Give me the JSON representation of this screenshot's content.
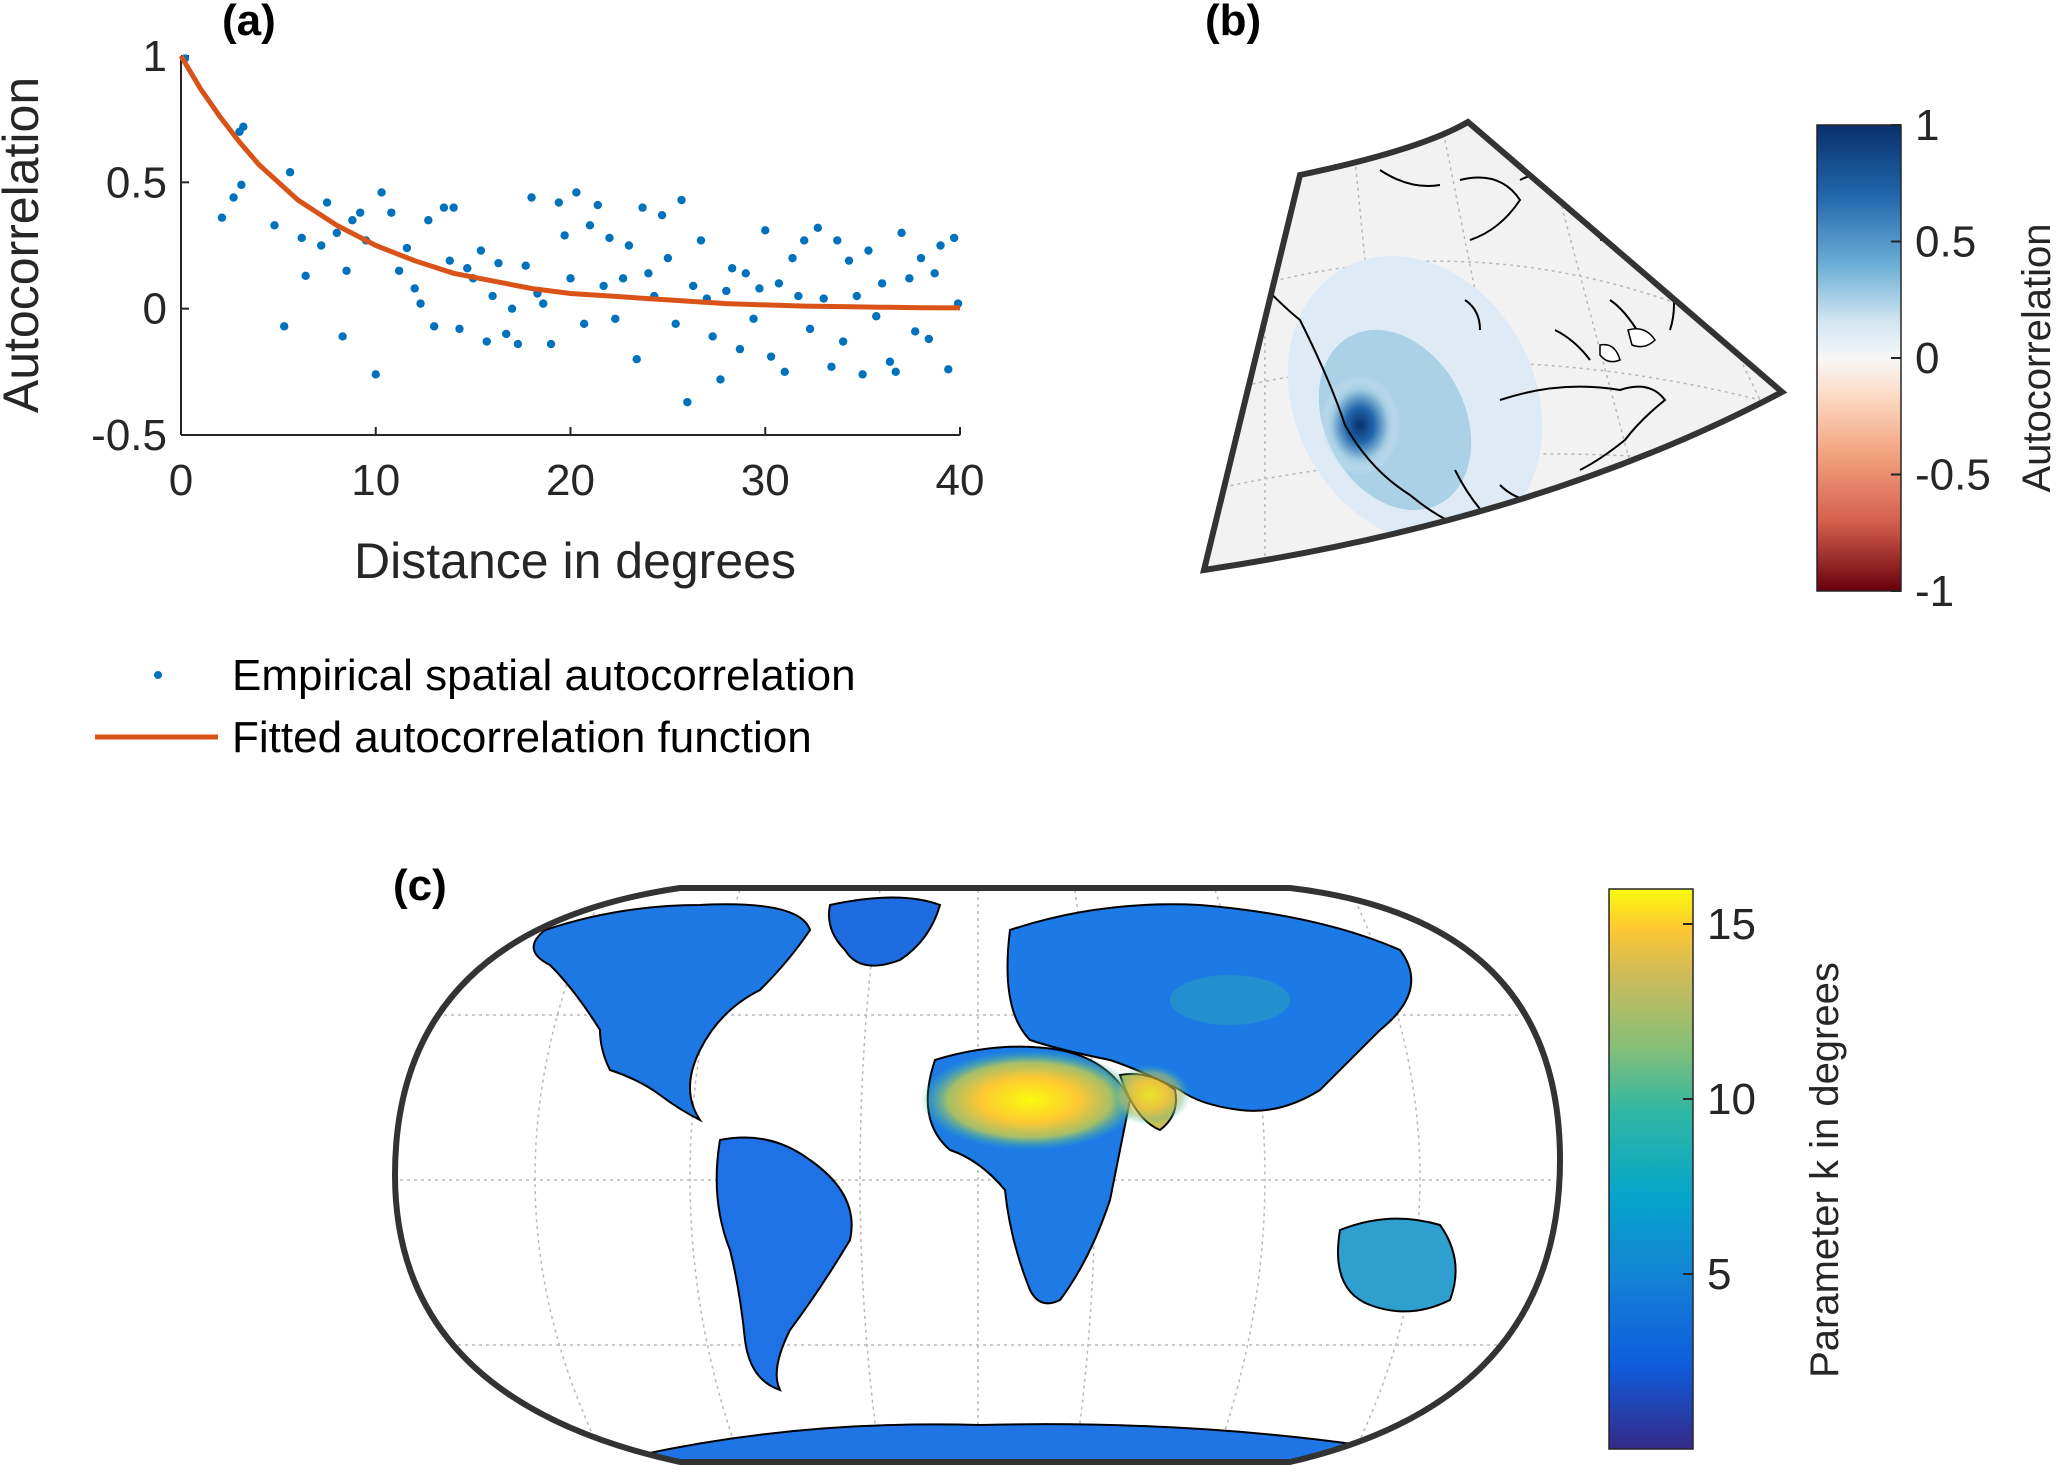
{
  "figure": {
    "panel_a_label": "(a)",
    "panel_b_label": "(b)",
    "panel_c_label": "(c)"
  },
  "chart_data": [
    {
      "type": "scatter",
      "panel": "(a)",
      "xlabel": "Distance in degrees",
      "ylabel": "Autocorrelation",
      "xlim": [
        0,
        40
      ],
      "ylim": [
        -0.5,
        1
      ],
      "xticks": [
        "0",
        "10",
        "20",
        "30",
        "40"
      ],
      "yticks": [
        "-0.5",
        "0",
        "0.5",
        "1"
      ],
      "grid": false,
      "legend_position": "below",
      "colors": {
        "empirical": "#0072BD",
        "fitted": "#D95319"
      },
      "series": [
        {
          "name": "Empirical spatial autocorrelation",
          "style": "dots",
          "points": [
            [
              0.2,
              0.99
            ],
            [
              2.1,
              0.36
            ],
            [
              2.7,
              0.44
            ],
            [
              3.0,
              0.7
            ],
            [
              3.2,
              0.72
            ],
            [
              3.1,
              0.49
            ],
            [
              4.8,
              0.33
            ],
            [
              5.3,
              -0.07
            ],
            [
              5.6,
              0.54
            ],
            [
              6.2,
              0.28
            ],
            [
              6.4,
              0.13
            ],
            [
              7.2,
              0.25
            ],
            [
              7.5,
              0.42
            ],
            [
              8.0,
              0.3
            ],
            [
              8.3,
              -0.11
            ],
            [
              8.5,
              0.15
            ],
            [
              8.8,
              0.35
            ],
            [
              9.2,
              0.38
            ],
            [
              9.5,
              0.27
            ],
            [
              10.0,
              -0.26
            ],
            [
              10.3,
              0.46
            ],
            [
              10.8,
              0.38
            ],
            [
              11.2,
              0.15
            ],
            [
              11.6,
              0.24
            ],
            [
              12.0,
              0.08
            ],
            [
              12.3,
              0.02
            ],
            [
              12.7,
              0.35
            ],
            [
              13.0,
              -0.07
            ],
            [
              13.5,
              0.4
            ],
            [
              13.8,
              0.19
            ],
            [
              14.0,
              0.4
            ],
            [
              14.3,
              -0.08
            ],
            [
              14.7,
              0.16
            ],
            [
              15.0,
              0.12
            ],
            [
              15.4,
              0.23
            ],
            [
              15.7,
              -0.13
            ],
            [
              16.0,
              0.05
            ],
            [
              16.3,
              0.18
            ],
            [
              16.7,
              -0.1
            ],
            [
              17.0,
              0.0
            ],
            [
              17.3,
              -0.14
            ],
            [
              17.7,
              0.17
            ],
            [
              18.0,
              0.44
            ],
            [
              18.3,
              0.06
            ],
            [
              18.6,
              0.02
            ],
            [
              19.0,
              -0.14
            ],
            [
              19.4,
              0.42
            ],
            [
              19.7,
              0.29
            ],
            [
              20.0,
              0.12
            ],
            [
              20.3,
              0.46
            ],
            [
              20.7,
              -0.06
            ],
            [
              21.0,
              0.33
            ],
            [
              21.4,
              0.41
            ],
            [
              21.7,
              0.09
            ],
            [
              22.0,
              0.28
            ],
            [
              22.3,
              -0.04
            ],
            [
              22.7,
              0.12
            ],
            [
              23.0,
              0.25
            ],
            [
              23.4,
              -0.2
            ],
            [
              23.7,
              0.4
            ],
            [
              24.0,
              0.14
            ],
            [
              24.3,
              0.05
            ],
            [
              24.7,
              0.37
            ],
            [
              25.0,
              0.2
            ],
            [
              25.4,
              -0.06
            ],
            [
              25.7,
              0.43
            ],
            [
              26.0,
              -0.37
            ],
            [
              26.3,
              0.09
            ],
            [
              26.7,
              0.27
            ],
            [
              27.0,
              0.04
            ],
            [
              27.3,
              -0.11
            ],
            [
              27.7,
              -0.28
            ],
            [
              28.0,
              0.07
            ],
            [
              28.3,
              0.16
            ],
            [
              28.7,
              -0.16
            ],
            [
              29.0,
              0.14
            ],
            [
              29.4,
              -0.04
            ],
            [
              29.7,
              0.08
            ],
            [
              30.0,
              0.31
            ],
            [
              30.3,
              -0.19
            ],
            [
              30.7,
              0.1
            ],
            [
              31.0,
              -0.25
            ],
            [
              31.4,
              0.2
            ],
            [
              31.7,
              0.05
            ],
            [
              32.0,
              0.27
            ],
            [
              32.3,
              -0.08
            ],
            [
              32.7,
              0.32
            ],
            [
              33.0,
              0.04
            ],
            [
              33.4,
              -0.23
            ],
            [
              33.7,
              0.27
            ],
            [
              34.0,
              -0.13
            ],
            [
              34.3,
              0.19
            ],
            [
              34.7,
              0.05
            ],
            [
              35.0,
              -0.26
            ],
            [
              35.3,
              0.23
            ],
            [
              35.7,
              -0.03
            ],
            [
              36.0,
              0.1
            ],
            [
              36.4,
              -0.21
            ],
            [
              36.7,
              -0.25
            ],
            [
              37.0,
              0.3
            ],
            [
              37.4,
              0.12
            ],
            [
              37.7,
              -0.09
            ],
            [
              38.0,
              0.2
            ],
            [
              38.4,
              -0.12
            ],
            [
              38.7,
              0.14
            ],
            [
              39.0,
              0.25
            ],
            [
              39.4,
              -0.24
            ],
            [
              39.7,
              0.28
            ],
            [
              39.9,
              0.02
            ]
          ]
        },
        {
          "name": "Fitted autocorrelation function",
          "style": "line",
          "points": [
            [
              0,
              1.0
            ],
            [
              1,
              0.87
            ],
            [
              2,
              0.76
            ],
            [
              3,
              0.66
            ],
            [
              4,
              0.57
            ],
            [
              5,
              0.5
            ],
            [
              6,
              0.43
            ],
            [
              7,
              0.38
            ],
            [
              8,
              0.33
            ],
            [
              9,
              0.29
            ],
            [
              10,
              0.25
            ],
            [
              12,
              0.19
            ],
            [
              14,
              0.14
            ],
            [
              16,
              0.11
            ],
            [
              18,
              0.08
            ],
            [
              20,
              0.06
            ],
            [
              22,
              0.05
            ],
            [
              24,
              0.04
            ],
            [
              26,
              0.03
            ],
            [
              28,
              0.02
            ],
            [
              30,
              0.015
            ],
            [
              32,
              0.01
            ],
            [
              34,
              0.008
            ],
            [
              36,
              0.006
            ],
            [
              38,
              0.004
            ],
            [
              40,
              0.003
            ]
          ]
        }
      ]
    },
    {
      "type": "heatmap",
      "panel": "(b)",
      "map": "North America, conic projection",
      "colorbar_label": "Autocorrelation",
      "colorbar_ticks": [
        "1",
        "0.5",
        "0",
        "-0.5",
        "-1"
      ],
      "colorbar_range": [
        -1,
        1
      ],
      "colormap": "red-white-blue",
      "colors": {
        "max": "#08306B",
        "zero": "#F7F7F7",
        "min": "#67000D",
        "background": "#F0F0F0"
      },
      "max_value_at": "California coast"
    },
    {
      "type": "heatmap",
      "panel": "(c)",
      "map": "global land, Robinson-like projection",
      "colorbar_label": "Parameter k in degrees",
      "colorbar_ticks": [
        "15",
        "10",
        "5"
      ],
      "colorbar_range": [
        0,
        16
      ],
      "colormap": "parula",
      "colors": {
        "low": "#352A87",
        "mid_low": "#0F5CDD",
        "mid": "#12BEB9",
        "mid_high": "#A5BE6A",
        "high": "#F9FB0E"
      },
      "highest_values_region": "Sahara and Arabia"
    }
  ]
}
